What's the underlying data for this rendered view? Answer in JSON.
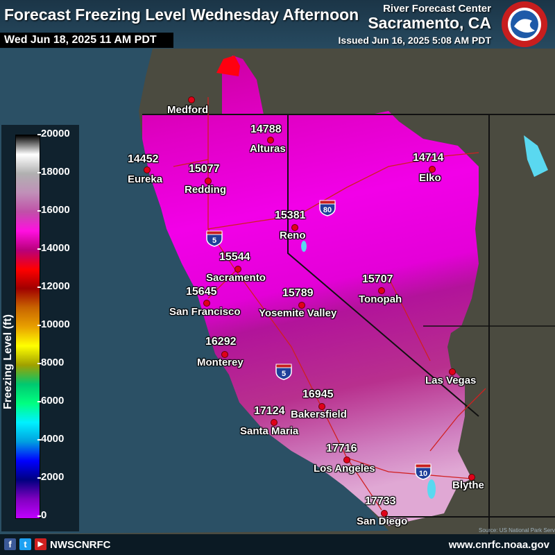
{
  "header": {
    "title": "Forecast Freezing Level Wednesday Afternoon",
    "valid_time": "Wed Jun 18, 2025 11 AM PDT",
    "agency": "River Forecast Center",
    "office": "Sacramento, CA",
    "issued": "Issued Jun 16, 2025 5:08 AM PDT",
    "logo_text": "NATIONAL WEATHER SERVICE"
  },
  "legend": {
    "label": "Freezing Level (ft)",
    "ticks": [
      "20000",
      "18000",
      "16000",
      "14000",
      "12000",
      "10000",
      "8000",
      "6000",
      "4000",
      "2000",
      "0"
    ],
    "colors": [
      "#000000",
      "#ffffff",
      "#b0b0b0",
      "#c090b8",
      "#c050a8",
      "#ff10e0",
      "#b8007a",
      "#ff0000",
      "#a00000",
      "#c86400",
      "#e8a000",
      "#ffff00",
      "#a0a000",
      "#00c870",
      "#00ff80",
      "#00f0ff",
      "#00a0e0",
      "#0000ff",
      "#000080",
      "#8000c0",
      "#c000ff"
    ]
  },
  "cities": [
    {
      "name": "Medford",
      "value": ""
    },
    {
      "name": "Alturas",
      "value": "14788"
    },
    {
      "name": "Eureka",
      "value": "14452"
    },
    {
      "name": "Redding",
      "value": "15077"
    },
    {
      "name": "Elko",
      "value": "14714"
    },
    {
      "name": "Reno",
      "value": "15381"
    },
    {
      "name": "Sacramento",
      "value": "15544"
    },
    {
      "name": "San Francisco",
      "value": "15645"
    },
    {
      "name": "Tonopah",
      "value": "15707"
    },
    {
      "name": "Yosemite Valley",
      "value": "15789"
    },
    {
      "name": "Monterey",
      "value": "16292"
    },
    {
      "name": "Las Vegas",
      "value": ""
    },
    {
      "name": "Bakersfield",
      "value": "16945"
    },
    {
      "name": "Santa Maria",
      "value": "17124"
    },
    {
      "name": "Los Angeles",
      "value": "17716"
    },
    {
      "name": "Blythe",
      "value": ""
    },
    {
      "name": "San Diego",
      "value": "17733"
    }
  ],
  "interstates": [
    "80",
    "5",
    "5",
    "10"
  ],
  "footer": {
    "handle": "NWSCNRFC",
    "url": "www.cnrfc.noaa.gov",
    "social": [
      "f",
      "t",
      "▶"
    ],
    "credit": "Source: US National Park Service"
  }
}
